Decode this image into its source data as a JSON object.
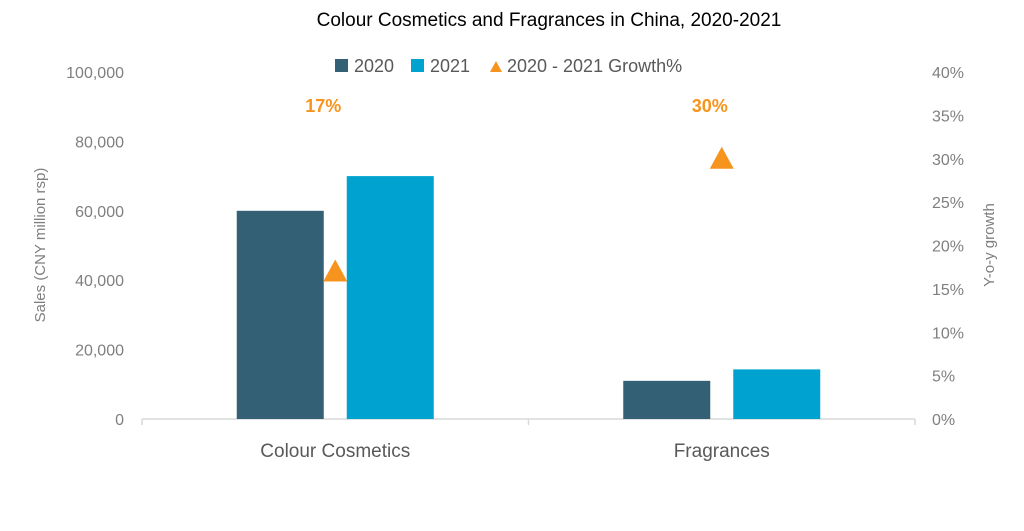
{
  "chart_data": {
    "type": "bar",
    "title": "Colour Cosmetics and Fragrances in China, 2020-2021",
    "categories": [
      "Colour Cosmetics",
      "Fragrances"
    ],
    "series": [
      {
        "name": "2020",
        "values": [
          60000,
          11000
        ],
        "color": "#346076"
      },
      {
        "name": "2021",
        "values": [
          70000,
          14300
        ],
        "color": "#00a3cf"
      }
    ],
    "growth_series": {
      "name": "2020 - 2021 Growth%",
      "values": [
        17,
        30
      ],
      "labels": [
        "17%",
        "30%"
      ],
      "color": "#f7941d"
    },
    "ylabel": "Sales (CNY million rsp)",
    "y2label": "Y-o-y growth",
    "ylim": [
      0,
      100000
    ],
    "y2lim": [
      0,
      40
    ],
    "yticks": [
      "0",
      "20,000",
      "40,000",
      "60,000",
      "80,000",
      "100,000"
    ],
    "y2ticks": [
      "0%",
      "5%",
      "10%",
      "15%",
      "20%",
      "25%",
      "30%",
      "35%",
      "40%"
    ],
    "legend_position": "top-center",
    "grid": false
  }
}
